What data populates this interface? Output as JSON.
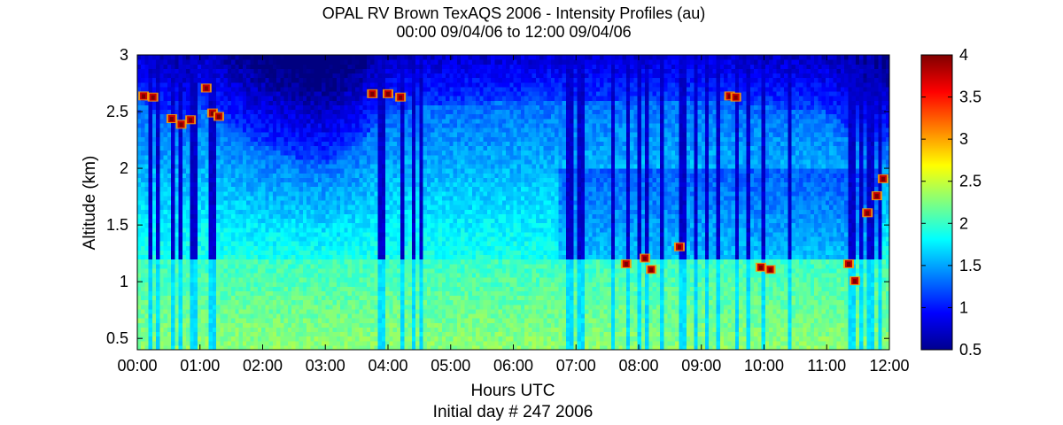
{
  "chart_data": {
    "type": "heatmap",
    "title": "OPAL RV Brown TexAQS 2006 - Intensity Profiles (au)",
    "subtitle": "00:00 09/04/06 to 12:00 09/04/06",
    "xlabel": "Hours UTC",
    "xlabel2": "Initial day # 247  2006",
    "ylabel": "Altitude (km)",
    "xlim": [
      0,
      12
    ],
    "ylim": [
      0.4,
      3
    ],
    "x_ticks": [
      0,
      1,
      2,
      3,
      4,
      5,
      6,
      7,
      8,
      9,
      10,
      11,
      12
    ],
    "x_tick_labels": [
      "00:00",
      "01:00",
      "02:00",
      "03:00",
      "04:00",
      "05:00",
      "06:00",
      "07:00",
      "08:00",
      "09:00",
      "10:00",
      "11:00",
      "12:00"
    ],
    "y_ticks": [
      0.5,
      1,
      1.5,
      2,
      2.5,
      3
    ],
    "y_tick_labels": [
      "0.5",
      "1",
      "1.5",
      "2",
      "2.5",
      "3"
    ],
    "colorbar": {
      "range": [
        0.5,
        4
      ],
      "ticks": [
        0.5,
        1,
        1.5,
        2,
        2.5,
        3,
        3.5,
        4
      ],
      "tick_labels": [
        "0.5",
        "1",
        "1.5",
        "2",
        "2.5",
        "3",
        "3.5",
        "4"
      ],
      "colormap": "jet"
    },
    "boundary_layer_top_km": [
      [
        0.0,
        2.62
      ],
      [
        0.5,
        2.45
      ],
      [
        0.8,
        2.38
      ],
      [
        1.0,
        2.55
      ],
      [
        1.2,
        2.5
      ],
      [
        1.5,
        2.35
      ],
      [
        2.0,
        2.2
      ],
      [
        2.5,
        2.1
      ],
      [
        3.0,
        2.05
      ],
      [
        3.5,
        2.2
      ],
      [
        4.0,
        2.5
      ],
      [
        4.5,
        2.55
      ],
      [
        5.0,
        2.55
      ],
      [
        6.0,
        2.6
      ],
      [
        7.0,
        2.6
      ],
      [
        8.0,
        2.6
      ],
      [
        9.0,
        2.62
      ],
      [
        10.0,
        2.55
      ],
      [
        11.0,
        2.5
      ],
      [
        11.5,
        2.3
      ],
      [
        12.0,
        2.2
      ]
    ],
    "low_cloud_top_km": [
      [
        7.0,
        1.2
      ],
      [
        8.0,
        1.22
      ],
      [
        9.0,
        1.2
      ],
      [
        10.0,
        1.18
      ],
      [
        11.0,
        1.2
      ],
      [
        12.0,
        1.2
      ]
    ],
    "high_intensity_patches": [
      {
        "x": 0.1,
        "y": 2.63
      },
      {
        "x": 0.25,
        "y": 2.62
      },
      {
        "x": 0.55,
        "y": 2.43
      },
      {
        "x": 0.7,
        "y": 2.38
      },
      {
        "x": 0.85,
        "y": 2.42
      },
      {
        "x": 1.1,
        "y": 2.7
      },
      {
        "x": 1.2,
        "y": 2.48
      },
      {
        "x": 1.3,
        "y": 2.45
      },
      {
        "x": 3.75,
        "y": 2.65
      },
      {
        "x": 4.0,
        "y": 2.65
      },
      {
        "x": 4.2,
        "y": 2.62
      },
      {
        "x": 7.8,
        "y": 1.15
      },
      {
        "x": 8.1,
        "y": 1.2
      },
      {
        "x": 8.2,
        "y": 1.1
      },
      {
        "x": 8.65,
        "y": 1.3
      },
      {
        "x": 9.45,
        "y": 2.63
      },
      {
        "x": 9.55,
        "y": 2.62
      },
      {
        "x": 9.95,
        "y": 1.12
      },
      {
        "x": 10.1,
        "y": 1.1
      },
      {
        "x": 11.35,
        "y": 1.15
      },
      {
        "x": 11.45,
        "y": 1.0
      },
      {
        "x": 11.65,
        "y": 1.6
      },
      {
        "x": 11.8,
        "y": 1.75
      },
      {
        "x": 11.9,
        "y": 1.9
      }
    ],
    "dropout_columns_hours": [
      0.2,
      0.35,
      0.55,
      0.7,
      0.9,
      1.2,
      3.85,
      3.95,
      4.25,
      4.4,
      4.55,
      6.9,
      7.05,
      7.1,
      7.6,
      7.85,
      8.0,
      8.15,
      8.35,
      8.7,
      8.9,
      9.1,
      9.25,
      9.55,
      9.75,
      10.0,
      10.4,
      11.4,
      11.55,
      11.7,
      11.85
    ],
    "grid": false
  }
}
